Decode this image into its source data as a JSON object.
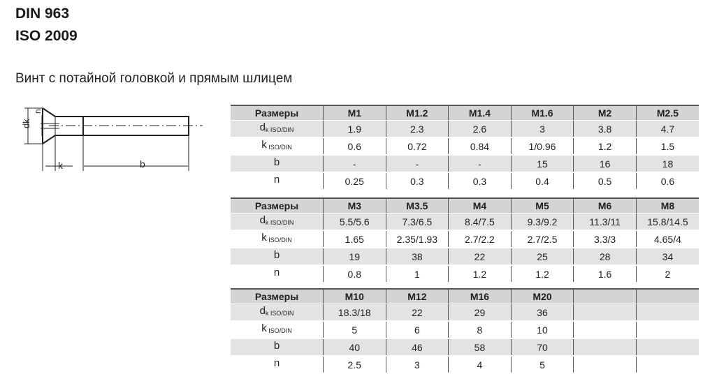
{
  "header": {
    "title_line1": "DIN 963",
    "title_line2": "ISO 2009",
    "subtitle": "Винт с потайной головкой и прямым шлицем"
  },
  "drawing": {
    "labels": {
      "dk": "dk",
      "n": "n",
      "k": "k",
      "b": "b"
    }
  },
  "tables": [
    {
      "header_label": "Размеры",
      "columns": [
        "M1",
        "M1.2",
        "M1.4",
        "M1.6",
        "M2",
        "M2.5"
      ],
      "rows": [
        {
          "label": "d",
          "sub": "k ISO/DIN",
          "values": [
            "1.9",
            "2.3",
            "2.6",
            "3",
            "3.8",
            "4.7"
          ]
        },
        {
          "label": "k",
          "sub": " ISO/DIN",
          "values": [
            "0.6",
            "0.72",
            "0.84",
            "1/0.96",
            "1.2",
            "1.5"
          ]
        },
        {
          "label": "b",
          "sub": "",
          "values": [
            "-",
            "-",
            "-",
            "15",
            "16",
            "18"
          ]
        },
        {
          "label": "n",
          "sub": "",
          "values": [
            "0.25",
            "0.3",
            "0.3",
            "0.4",
            "0.5",
            "0.6"
          ]
        }
      ]
    },
    {
      "header_label": "Размеры",
      "columns": [
        "M3",
        "M3.5",
        "M4",
        "M5",
        "M6",
        "M8"
      ],
      "rows": [
        {
          "label": "d",
          "sub": "k ISO/DIN",
          "values": [
            "5.5/5.6",
            "7.3/6.5",
            "8.4/7.5",
            "9.3/9.2",
            "11.3/11",
            "15.8/14.5"
          ]
        },
        {
          "label": "k",
          "sub": " ISO/DIN",
          "values": [
            "1.65",
            "2.35/1.93",
            "2.7/2.2",
            "2.7/2.5",
            "3.3/3",
            "4.65/4"
          ]
        },
        {
          "label": "b",
          "sub": "",
          "values": [
            "19",
            "38",
            "22",
            "25",
            "28",
            "34"
          ]
        },
        {
          "label": "n",
          "sub": "",
          "values": [
            "0.8",
            "1",
            "1.2",
            "1.2",
            "1.6",
            "2"
          ]
        }
      ]
    },
    {
      "header_label": "Размеры",
      "columns": [
        "M10",
        "M12",
        "M16",
        "M20",
        "",
        ""
      ],
      "rows": [
        {
          "label": "d",
          "sub": "k ISO/DIN",
          "values": [
            "18.3/18",
            "22",
            "29",
            "36",
            "",
            ""
          ]
        },
        {
          "label": "k",
          "sub": " ISO/DIN",
          "values": [
            "5",
            "6",
            "8",
            "10",
            "",
            ""
          ]
        },
        {
          "label": "b",
          "sub": "",
          "values": [
            "40",
            "46",
            "58",
            "70",
            "",
            ""
          ]
        },
        {
          "label": "n",
          "sub": "",
          "values": [
            "2.5",
            "3",
            "4",
            "5",
            "",
            ""
          ]
        }
      ]
    }
  ]
}
